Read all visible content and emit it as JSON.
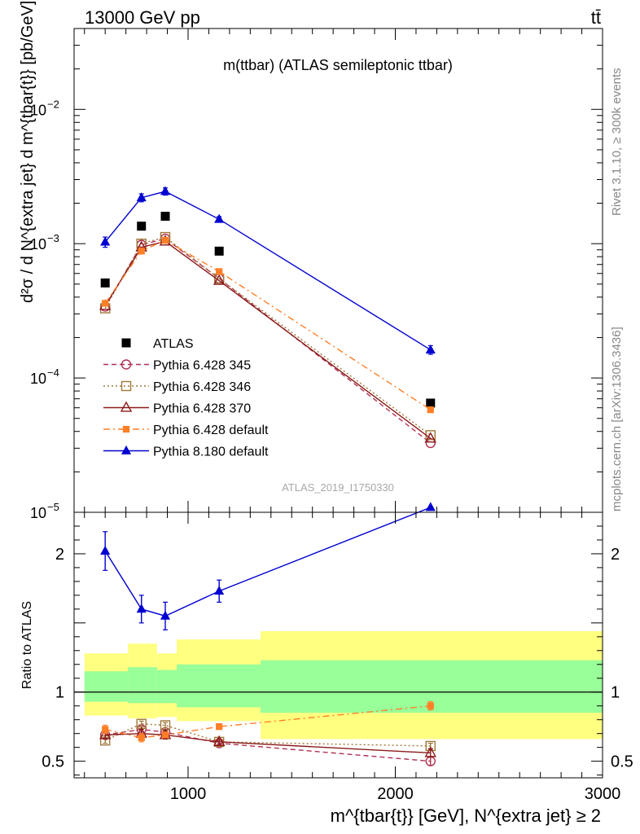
{
  "header": {
    "left": "13000 GeV pp",
    "right": "tt̄"
  },
  "side_labels": {
    "rivet": "Rivet 3.1.10, ≥ 300k events",
    "mcplots": "mcplots.cern.ch [arXiv:1306.3436]"
  },
  "colors": {
    "atlas": "#000000",
    "py345": "#b03050",
    "py346": "#a07838",
    "py370": "#8b1a1a",
    "pydef6": "#ff7f27",
    "py8": "#0000d0",
    "band_yellow": "#ffff80",
    "band_green": "#99ff99"
  },
  "chart_data": [
    {
      "type": "line",
      "title": "m(ttbar) (ATLAS semileptonic ttbar)",
      "watermark": "ATLAS_2019_I1750330",
      "ylabel": "d²σ / d N^{extra jet} d m^{tbar{t}} [pb/GeV]",
      "yscale": "log",
      "xlim": [
        450,
        3000
      ],
      "ylim": [
        1e-05,
        0.04
      ],
      "y_ticks": [
        {
          "value": 1e-05,
          "base": "10",
          "exp": "−5"
        },
        {
          "value": 0.0001,
          "base": "10",
          "exp": "−4"
        },
        {
          "value": 0.001,
          "base": "10",
          "exp": "−3"
        },
        {
          "value": 0.01,
          "base": "10",
          "exp": "−2"
        }
      ],
      "x": [
        600,
        775,
        890,
        1150,
        2170
      ],
      "series": [
        {
          "name": "ATLAS",
          "marker": "square",
          "style": "none",
          "color": "#000000",
          "values": [
            0.00051,
            0.00135,
            0.0016,
            0.00088,
            6.5e-05
          ],
          "errors": [
            0,
            0,
            0,
            0,
            0
          ]
        },
        {
          "name": "Pythia 6.428 345",
          "marker": "circle-open",
          "style": "dashed",
          "color": "#b03050",
          "values": [
            0.00034,
            0.00098,
            0.00109,
            0.00055,
            3.28e-05
          ],
          "errors": [
            0,
            0,
            0,
            0,
            0
          ]
        },
        {
          "name": "Pythia 6.428 346",
          "marker": "square-open",
          "style": "dotted",
          "color": "#a07838",
          "values": [
            0.00033,
            0.001,
            0.00112,
            0.00055,
            3.75e-05
          ],
          "errors": [
            0,
            0,
            0,
            0,
            0
          ]
        },
        {
          "name": "Pythia 6.428 370",
          "marker": "triangle-open",
          "style": "solid",
          "color": "#8b1a1a",
          "values": [
            0.000345,
            0.00094,
            0.00104,
            0.00053,
            3.55e-05
          ],
          "errors": [
            0,
            0,
            0,
            0,
            0
          ]
        },
        {
          "name": "Pythia 6.428 default",
          "marker": "square-small",
          "style": "dashdot",
          "color": "#ff7f27",
          "values": [
            0.00036,
            0.00088,
            0.00106,
            0.00062,
            5.8e-05
          ],
          "errors": [
            0,
            0,
            0,
            0,
            0
          ]
        },
        {
          "name": "Pythia 8.180 default",
          "marker": "triangle",
          "style": "solid",
          "color": "#0000d0",
          "values": [
            0.00103,
            0.0022,
            0.00245,
            0.00152,
            0.000162
          ],
          "errors": [
            9e-05,
            0.00015,
            0.00015,
            7e-05,
            1.2e-05
          ]
        }
      ]
    },
    {
      "type": "line",
      "ylabel": "Ratio to ATLAS",
      "xlabel": "m^{tbar{t}} [GeV], N^{extra jet} ≥ 2",
      "yscale": "linear",
      "xlim": [
        450,
        3000
      ],
      "ylim": [
        0.38,
        2.3
      ],
      "x_ticks": [
        {
          "value": 1000,
          "label": "1000"
        },
        {
          "value": 2000,
          "label": "2000"
        },
        {
          "value": 3000,
          "label": "3000"
        }
      ],
      "y_ticks": [
        {
          "value": 0.5,
          "label": "0.5"
        },
        {
          "value": 1,
          "label": "1"
        },
        {
          "value": 2,
          "label": "2"
        }
      ],
      "bands": [
        {
          "x0": 500,
          "x1": 710,
          "yellow": [
            0.83,
            1.28
          ],
          "green": [
            0.93,
            1.15
          ]
        },
        {
          "x0": 710,
          "x1": 850,
          "yellow": [
            0.81,
            1.35
          ],
          "green": [
            0.92,
            1.18
          ]
        },
        {
          "x0": 850,
          "x1": 945,
          "yellow": [
            0.82,
            1.28
          ],
          "green": [
            0.92,
            1.16
          ]
        },
        {
          "x0": 945,
          "x1": 1350,
          "yellow": [
            0.79,
            1.38
          ],
          "green": [
            0.89,
            1.2
          ]
        },
        {
          "x0": 1350,
          "x1": 3000,
          "yellow": [
            0.66,
            1.44
          ],
          "green": [
            0.85,
            1.23
          ]
        }
      ],
      "series": [
        {
          "name": "Pythia 6.428 345",
          "marker": "circle-open",
          "style": "dashed",
          "color": "#b03050",
          "values": [
            0.69,
            0.73,
            0.71,
            0.63,
            0.5
          ],
          "errors": [
            0.02,
            0.02,
            0.02,
            0.02,
            0.03
          ]
        },
        {
          "name": "Pythia 6.428 346",
          "marker": "square-open",
          "style": "dotted",
          "color": "#a07838",
          "values": [
            0.65,
            0.77,
            0.76,
            0.64,
            0.61
          ],
          "errors": [
            0.02,
            0.02,
            0.02,
            0.02,
            0.02
          ]
        },
        {
          "name": "Pythia 6.428 370",
          "marker": "triangle-open",
          "style": "solid",
          "color": "#8b1a1a",
          "values": [
            0.69,
            0.7,
            0.69,
            0.64,
            0.56
          ],
          "errors": [
            0.03,
            0.03,
            0.03,
            0.02,
            0.03
          ]
        },
        {
          "name": "Pythia 6.428 default",
          "marker": "square-small",
          "style": "dashdot",
          "color": "#ff7f27",
          "values": [
            0.73,
            0.67,
            0.69,
            0.75,
            0.9
          ],
          "errors": [
            0.03,
            0.03,
            0.02,
            0.02,
            0.03
          ]
        },
        {
          "name": "Pythia 8.180 default",
          "marker": "triangle",
          "style": "solid",
          "color": "#0000d0",
          "values": [
            2.02,
            1.6,
            1.55,
            1.73,
            2.48
          ],
          "errors": [
            0.14,
            0.1,
            0.1,
            0.08,
            0.12
          ]
        }
      ]
    }
  ]
}
